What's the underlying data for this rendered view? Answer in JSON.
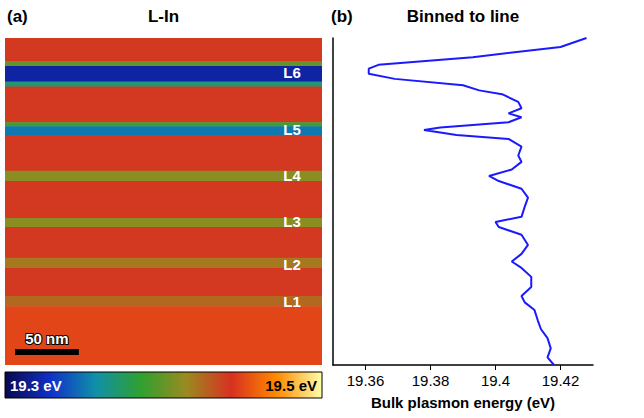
{
  "chart_data": [
    {
      "type": "heatmap",
      "panel": "(a)",
      "title": "L-In",
      "y": [
        0,
        18,
        22,
        34,
        38,
        66,
        69,
        76,
        104,
        112,
        141,
        148,
        172,
        180,
        202,
        210
      ],
      "values": [
        19.44,
        19.4,
        19.32,
        19.37,
        19.44,
        19.39,
        19.35,
        19.44,
        19.41,
        19.44,
        19.41,
        19.44,
        19.42,
        19.44,
        19.425,
        19.45
      ],
      "ylim": [
        0,
        256
      ],
      "tick_labels": false,
      "colorbar": {
        "range": [
          19.3,
          19.5
        ],
        "labels": [
          "19.3 eV",
          "19.5 eV"
        ]
      },
      "annotations": [
        {
          "text": "L6",
          "y": 27
        },
        {
          "text": "L5",
          "y": 72
        },
        {
          "text": "L4",
          "y": 108
        },
        {
          "text": "L3",
          "y": 144
        },
        {
          "text": "L2",
          "y": 177
        },
        {
          "text": "L1",
          "y": 206
        }
      ],
      "scale_bar": {
        "length": 50,
        "label": "50 nm"
      }
    },
    {
      "type": "line",
      "panel": "(b)",
      "title": "Binned to line",
      "xlabel": "Bulk plasmon energy (eV)",
      "x": [
        19.428,
        19.42,
        19.393,
        19.364,
        19.361,
        19.361,
        19.369,
        19.39,
        19.395,
        19.402,
        19.407,
        19.408,
        19.404,
        19.408,
        19.404,
        19.383,
        19.378,
        19.388,
        19.404,
        19.408,
        19.407,
        19.408,
        19.405,
        19.398,
        19.401,
        19.408,
        19.41,
        19.409,
        19.408,
        19.4,
        19.401,
        19.408,
        19.41,
        19.408,
        19.405,
        19.408,
        19.411,
        19.411,
        19.408,
        19.409,
        19.412,
        19.413,
        19.414,
        19.416,
        19.417,
        19.416,
        19.418
      ],
      "y": [
        0,
        7,
        15,
        21,
        24,
        28,
        32,
        37,
        41,
        44,
        50,
        55,
        59,
        62,
        66,
        70,
        72,
        76,
        79,
        85,
        92,
        97,
        103,
        108,
        112,
        118,
        125,
        132,
        140,
        144,
        148,
        154,
        162,
        169,
        175,
        180,
        187,
        195,
        202,
        207,
        213,
        221,
        228,
        235,
        243,
        250,
        256
      ],
      "xlim": [
        19.35,
        19.43
      ],
      "xticks": [
        19.36,
        19.38,
        19.4,
        19.42
      ],
      "ylim": [
        0,
        256
      ],
      "color": "#1a1aff",
      "tick_labels": "x"
    }
  ]
}
